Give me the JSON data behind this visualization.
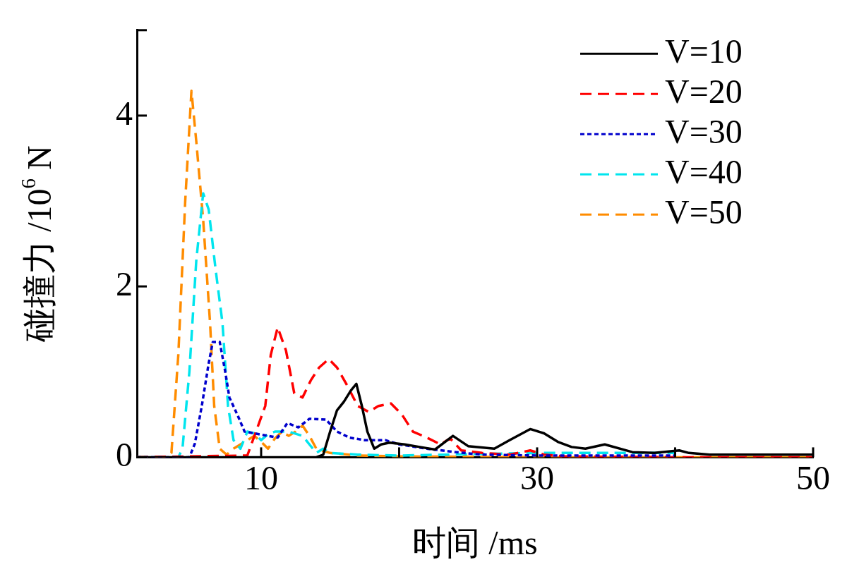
{
  "chart_data": {
    "type": "line",
    "xlabel": "时间 /ms",
    "ylabel": "碰撞力 /10$^{6}$ N",
    "xlim": [
      1,
      50
    ],
    "xticks": [
      10,
      {
        "value": 20,
        "label": null
      },
      30,
      {
        "value": 40,
        "label": null
      },
      50
    ],
    "ylim": [
      0,
      5
    ],
    "yticks": [
      0,
      2,
      4,
      {
        "value": 5,
        "label": null
      }
    ],
    "grid": false,
    "legend": "top right",
    "marker": "none",
    "series": [
      {
        "name": "V=10",
        "color": "#000000",
        "line_style": "solid",
        "x": [
          1,
          14,
          14.5,
          15,
          15.5,
          16,
          16.5,
          16.9,
          17.3,
          17.7,
          18.2,
          18.7,
          19.3,
          20.4,
          21.5,
          22.6,
          23.9,
          25,
          26.9,
          28,
          29.5,
          30.5,
          31.5,
          32.5,
          33.5,
          34.9,
          36.9,
          38.5,
          40.3,
          41,
          42.5,
          45,
          50
        ],
        "values": [
          0,
          0,
          0.03,
          0.3,
          0.55,
          0.65,
          0.78,
          0.86,
          0.6,
          0.3,
          0.1,
          0.15,
          0.17,
          0.15,
          0.12,
          0.09,
          0.25,
          0.13,
          0.1,
          0.2,
          0.33,
          0.28,
          0.18,
          0.12,
          0.1,
          0.15,
          0.06,
          0.05,
          0.08,
          0.05,
          0.03,
          0.03,
          0.03
        ]
      },
      {
        "name": "V=20",
        "color": "#ff0000",
        "line_style": "dashed",
        "x": [
          1,
          9,
          10.3,
          10.7,
          11.2,
          11.8,
          12.4,
          13,
          13.6,
          14.2,
          14.9,
          15.5,
          16.2,
          17,
          17.8,
          18.5,
          19.4,
          20.2,
          21,
          22,
          23,
          23.7,
          24.5,
          26,
          28,
          29.5,
          30.5,
          32,
          40,
          50
        ],
        "values": [
          0,
          0.02,
          0.6,
          1.2,
          1.52,
          1.25,
          0.75,
          0.7,
          0.9,
          1.05,
          1.15,
          1.05,
          0.85,
          0.6,
          0.53,
          0.6,
          0.63,
          0.5,
          0.3,
          0.23,
          0.15,
          0.22,
          0.08,
          0.05,
          0.03,
          0.08,
          0.03,
          0.01,
          0,
          0
        ]
      },
      {
        "name": "V=30",
        "color": "#0000cc",
        "line_style": "dotted",
        "x": [
          1,
          4.8,
          5.2,
          5.7,
          6.2,
          6.5,
          7,
          7.4,
          7.7,
          8.3,
          8.8,
          9.5,
          10.5,
          11.2,
          11.9,
          12.7,
          13.5,
          14.7,
          15.5,
          16.4,
          17.5,
          19,
          20,
          22,
          24.1,
          26,
          30,
          40
        ],
        "values": [
          0,
          0,
          0.16,
          0.6,
          1.1,
          1.35,
          1.35,
          1.0,
          0.7,
          0.49,
          0.3,
          0.28,
          0.25,
          0.23,
          0.4,
          0.35,
          0.45,
          0.44,
          0.3,
          0.23,
          0.2,
          0.2,
          0.15,
          0.1,
          0.06,
          0.03,
          0.02,
          0.02
        ]
      },
      {
        "name": "V=40",
        "color": "#00e5ee",
        "line_style": "dashed",
        "x": [
          1,
          4,
          4.3,
          4.8,
          5.3,
          5.8,
          6.2,
          6.7,
          7.2,
          7.6,
          8,
          8.5,
          9,
          9.5,
          10,
          10.5,
          11,
          12,
          13,
          13.5,
          14,
          14.5,
          15,
          17,
          20,
          30,
          40
        ],
        "values": [
          0,
          0,
          0.1,
          1.0,
          2.3,
          3.09,
          2.9,
          2.2,
          1.57,
          0.6,
          0.2,
          0.1,
          0.3,
          0.28,
          0.2,
          0.27,
          0.3,
          0.3,
          0.25,
          0.15,
          0.05,
          0.1,
          0.05,
          0.03,
          0.02,
          0.05,
          0.05
        ]
      },
      {
        "name": "V=50",
        "color": "#ff8c00",
        "line_style": "dashed",
        "x": [
          1,
          3,
          3.5,
          4,
          4.5,
          4.95,
          5.3,
          5.8,
          6.3,
          6.6,
          7,
          7.5,
          8,
          8.5,
          9,
          9.5,
          10,
          10.5,
          11,
          11.5,
          12,
          12.5,
          13,
          13.5,
          14,
          15,
          17,
          20,
          30,
          40,
          50
        ],
        "values": [
          0,
          0,
          0.05,
          1.2,
          3.0,
          4.29,
          3.7,
          2.78,
          1.57,
          0.6,
          0.1,
          0.03,
          0.1,
          0.15,
          0.2,
          0.25,
          0.18,
          0.1,
          0.22,
          0.3,
          0.25,
          0.3,
          0.37,
          0.25,
          0.1,
          0.05,
          0.02,
          0.01,
          0,
          0,
          0
        ]
      }
    ]
  }
}
